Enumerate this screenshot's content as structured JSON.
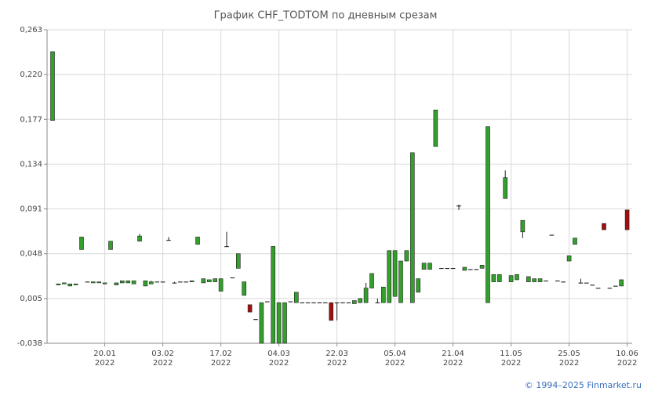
{
  "chart_data": {
    "type": "candlestick",
    "title": "График CHF_TODTOM по дневным срезам",
    "source": "© 1994–2025 Finmarket.ru",
    "up_color": "#33a02c",
    "down_color": "#a01010",
    "grid": true,
    "ylim": [
      -0.038,
      0.263
    ],
    "yticks": [
      {
        "value": -0.038,
        "label": "-0,038"
      },
      {
        "value": 0.005,
        "label": "0,005"
      },
      {
        "value": 0.048,
        "label": "0,048"
      },
      {
        "value": 0.091,
        "label": "0,091"
      },
      {
        "value": 0.134,
        "label": "0,134"
      },
      {
        "value": 0.177,
        "label": "0,177"
      },
      {
        "value": 0.22,
        "label": "0,220"
      },
      {
        "value": 0.263,
        "label": "0,263"
      }
    ],
    "categories": [
      null,
      null,
      null,
      null,
      null,
      null,
      null,
      null,
      null,
      [
        "20.01",
        "2022"
      ],
      null,
      null,
      null,
      null,
      null,
      null,
      null,
      null,
      null,
      [
        "03.02",
        "2022"
      ],
      null,
      null,
      null,
      null,
      null,
      null,
      null,
      null,
      null,
      [
        "17.02",
        "2022"
      ],
      null,
      null,
      null,
      null,
      null,
      null,
      null,
      null,
      null,
      [
        "04.03",
        "2022"
      ],
      null,
      null,
      null,
      null,
      null,
      null,
      null,
      null,
      null,
      [
        "22.03",
        "2022"
      ],
      null,
      null,
      null,
      null,
      null,
      null,
      null,
      null,
      null,
      [
        "05.04",
        "2022"
      ],
      null,
      null,
      null,
      null,
      null,
      null,
      null,
      null,
      null,
      [
        "21.04",
        "2022"
      ],
      null,
      null,
      null,
      null,
      null,
      null,
      null,
      null,
      null,
      [
        "11.05",
        "2022"
      ],
      null,
      null,
      null,
      null,
      null,
      null,
      null,
      null,
      null,
      [
        "25.05",
        "2022"
      ],
      null,
      null,
      null,
      null,
      null,
      null,
      null,
      null,
      null,
      [
        "10.06",
        "2022"
      ]
    ],
    "open": [
      0.176,
      0.018,
      0.019,
      0.017,
      0.018,
      0.052,
      0.021,
      0.02,
      0.02,
      0.019,
      0.052,
      0.018,
      0.02,
      0.02,
      0.019,
      0.06,
      0.017,
      0.019,
      0.021,
      0.021,
      0.061,
      0.02,
      0.021,
      0.021,
      0.021,
      0.057,
      0.02,
      0.021,
      0.021,
      0.012,
      0.055,
      0.025,
      0.034,
      0.008,
      -0.001,
      -0.015,
      -0.038,
      0.002,
      -0.038,
      -0.038,
      -0.038,
      0.002,
      0.001,
      0.001,
      0.001,
      0.001,
      0.001,
      0.001,
      0.001,
      0.001,
      0.001,
      0.001,
      0.0,
      0.001,
      0.001,
      0.015,
      0.001,
      0.001,
      0.001,
      0.007,
      0.001,
      0.041,
      0.001,
      0.011,
      0.033,
      0.033,
      0.151,
      0.034,
      0.034,
      0.034,
      0.094,
      0.032,
      0.033,
      0.033,
      0.034,
      0.001,
      0.021,
      0.021,
      0.101,
      0.021,
      0.023,
      0.069,
      0.021,
      0.021,
      0.021,
      0.022,
      0.066,
      0.022,
      0.021,
      0.041,
      0.057,
      0.02,
      0.02,
      0.018,
      0.015,
      0.077,
      0.015,
      0.017,
      0.017,
      0.09
    ],
    "high": [
      0.242,
      0.019,
      0.02,
      0.019,
      0.019,
      0.064,
      0.021,
      0.021,
      0.021,
      0.02,
      0.06,
      0.02,
      0.022,
      0.022,
      0.022,
      0.067,
      0.022,
      0.022,
      0.021,
      0.021,
      0.064,
      0.021,
      0.021,
      0.021,
      0.022,
      0.064,
      0.024,
      0.023,
      0.024,
      0.024,
      0.069,
      0.025,
      0.048,
      0.021,
      -0.001,
      -0.015,
      0.001,
      0.002,
      0.055,
      0.001,
      0.001,
      0.002,
      0.011,
      0.001,
      0.001,
      0.001,
      0.001,
      0.001,
      0.001,
      0.001,
      0.001,
      0.001,
      0.003,
      0.005,
      0.02,
      0.029,
      0.005,
      0.016,
      0.051,
      0.051,
      0.041,
      0.051,
      0.145,
      0.024,
      0.039,
      0.039,
      0.186,
      0.034,
      0.034,
      0.034,
      0.095,
      0.035,
      0.033,
      0.033,
      0.037,
      0.17,
      0.028,
      0.028,
      0.128,
      0.027,
      0.028,
      0.08,
      0.026,
      0.024,
      0.024,
      0.022,
      0.066,
      0.022,
      0.021,
      0.046,
      0.063,
      0.024,
      0.02,
      0.018,
      0.015,
      0.077,
      0.015,
      0.017,
      0.023,
      0.09
    ],
    "low": [
      0.176,
      0.018,
      0.019,
      0.017,
      0.018,
      0.052,
      0.021,
      0.02,
      0.02,
      0.019,
      0.052,
      0.018,
      0.02,
      0.02,
      0.019,
      0.06,
      0.017,
      0.019,
      0.021,
      0.021,
      0.061,
      0.02,
      0.021,
      0.021,
      0.021,
      0.057,
      0.02,
      0.021,
      0.021,
      0.012,
      0.055,
      0.025,
      0.034,
      0.008,
      -0.008,
      -0.015,
      -0.038,
      0.002,
      -0.038,
      -0.038,
      -0.038,
      0.002,
      0.001,
      0.001,
      0.001,
      0.001,
      0.001,
      0.001,
      -0.016,
      -0.016,
      0.001,
      0.001,
      0.0,
      0.001,
      0.001,
      0.015,
      0.001,
      0.001,
      0.001,
      0.007,
      0.001,
      0.041,
      0.001,
      0.011,
      0.033,
      0.033,
      0.151,
      0.034,
      0.034,
      0.034,
      0.09,
      0.032,
      0.033,
      0.033,
      0.034,
      0.001,
      0.021,
      0.021,
      0.101,
      0.021,
      0.023,
      0.063,
      0.021,
      0.021,
      0.021,
      0.022,
      0.066,
      0.022,
      0.021,
      0.041,
      0.057,
      0.02,
      0.02,
      0.018,
      0.015,
      0.071,
      0.015,
      0.017,
      0.017,
      0.071
    ],
    "close": [
      0.242,
      0.019,
      0.02,
      0.019,
      0.019,
      0.064,
      0.021,
      0.021,
      0.021,
      0.02,
      0.06,
      0.02,
      0.022,
      0.022,
      0.022,
      0.065,
      0.022,
      0.021,
      0.021,
      0.021,
      0.061,
      0.02,
      0.021,
      0.021,
      0.022,
      0.064,
      0.024,
      0.023,
      0.024,
      0.024,
      0.055,
      0.025,
      0.048,
      0.021,
      -0.008,
      -0.015,
      0.001,
      0.002,
      0.055,
      0.001,
      0.001,
      0.002,
      0.011,
      0.001,
      0.001,
      0.001,
      0.001,
      0.001,
      -0.016,
      0.001,
      0.001,
      0.001,
      0.003,
      0.005,
      0.015,
      0.029,
      0.001,
      0.016,
      0.051,
      0.051,
      0.041,
      0.051,
      0.145,
      0.024,
      0.039,
      0.039,
      0.186,
      0.034,
      0.034,
      0.034,
      0.094,
      0.035,
      0.033,
      0.033,
      0.037,
      0.17,
      0.028,
      0.028,
      0.121,
      0.027,
      0.028,
      0.08,
      0.026,
      0.024,
      0.024,
      0.022,
      0.066,
      0.022,
      0.021,
      0.046,
      0.063,
      0.02,
      0.02,
      0.018,
      0.015,
      0.071,
      0.015,
      0.017,
      0.023,
      0.071
    ]
  }
}
